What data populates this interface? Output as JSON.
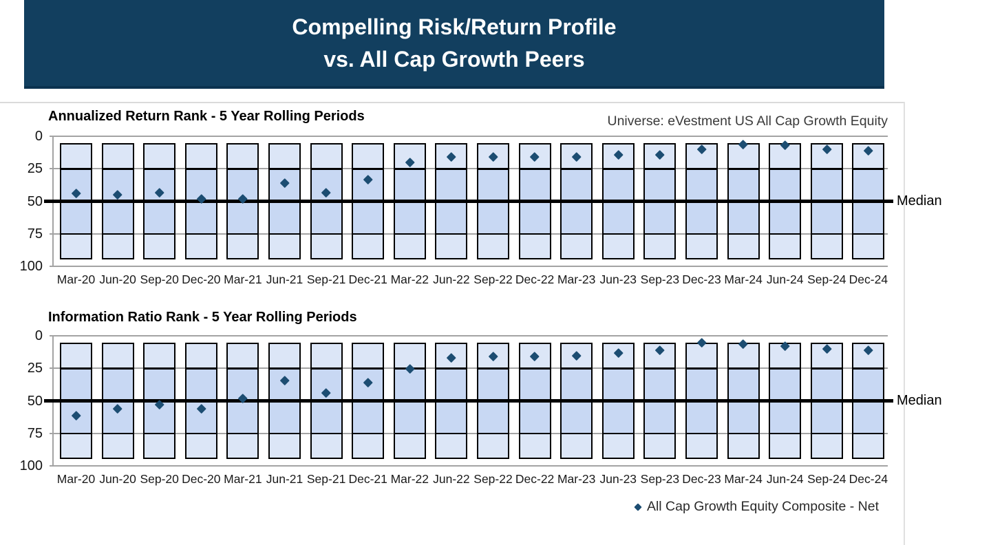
{
  "banner": {
    "title_line1": "Compelling Risk/Return Profile",
    "title_line2": "vs. All Cap Growth Peers",
    "bg_color": "#123F5F",
    "text_color": "#FFFFFF"
  },
  "colors": {
    "diamond": "#1C4D72",
    "box_light": "#DCE6F7",
    "box_mid": "#C8D8F3",
    "box_border": "#000000",
    "gridline": "#A3A3A3",
    "median_line": "#000000"
  },
  "legend": {
    "marker": "diamond-icon",
    "label": "All Cap Growth Equity Composite - Net"
  },
  "chart_data": [
    {
      "type": "scatter",
      "title": "Annualized Return Rank - 5 Year Rolling Periods",
      "right_header": "Universe: eVestment US All Cap Growth Equity",
      "xlabel": "",
      "ylabel": "",
      "y_axis": {
        "ticks": [
          0,
          25,
          50,
          75,
          100
        ],
        "range": [
          0,
          100
        ],
        "inverted": true
      },
      "grid": true,
      "categories": [
        "Mar-20",
        "Jun-20",
        "Sep-20",
        "Dec-20",
        "Mar-21",
        "Jun-21",
        "Sep-21",
        "Dec-21",
        "Mar-22",
        "Jun-22",
        "Sep-22",
        "Dec-22",
        "Mar-23",
        "Jun-23",
        "Sep-23",
        "Dec-23",
        "Mar-24",
        "Jun-24",
        "Sep-24",
        "Dec-24"
      ],
      "series": [
        {
          "name": "All Cap Growth Equity Composite - Net",
          "values": [
            44,
            45,
            43,
            48,
            48,
            36,
            43,
            33,
            20,
            16,
            16,
            16,
            16,
            14,
            14,
            10,
            6,
            7,
            10,
            11
          ]
        }
      ],
      "median_line": {
        "value": 50,
        "label": "Median"
      },
      "peer_band": {
        "low": 6,
        "high": 94,
        "quartile_breaks": [
          25,
          50,
          75
        ]
      }
    },
    {
      "type": "scatter",
      "title": "Information Ratio Rank - 5 Year Rolling Periods",
      "xlabel": "",
      "ylabel": "",
      "y_axis": {
        "ticks": [
          0,
          25,
          50,
          75,
          100
        ],
        "range": [
          0,
          100
        ],
        "inverted": true
      },
      "grid": true,
      "categories": [
        "Mar-20",
        "Jun-20",
        "Sep-20",
        "Dec-20",
        "Mar-21",
        "Jun-21",
        "Sep-21",
        "Dec-21",
        "Mar-22",
        "Jun-22",
        "Sep-22",
        "Dec-22",
        "Mar-23",
        "Jun-23",
        "Sep-23",
        "Dec-23",
        "Mar-24",
        "Jun-24",
        "Sep-24",
        "Dec-24"
      ],
      "series": [
        {
          "name": "All Cap Growth Equity Composite - Net",
          "values": [
            61,
            56,
            53,
            56,
            48,
            34,
            44,
            36,
            25,
            17,
            16,
            16,
            15,
            13,
            11,
            5,
            6,
            8,
            10,
            11
          ]
        }
      ],
      "median_line": {
        "value": 50,
        "label": "Median"
      },
      "peer_band": {
        "low": 6,
        "high": 94,
        "quartile_breaks": [
          25,
          50,
          75
        ]
      }
    }
  ]
}
